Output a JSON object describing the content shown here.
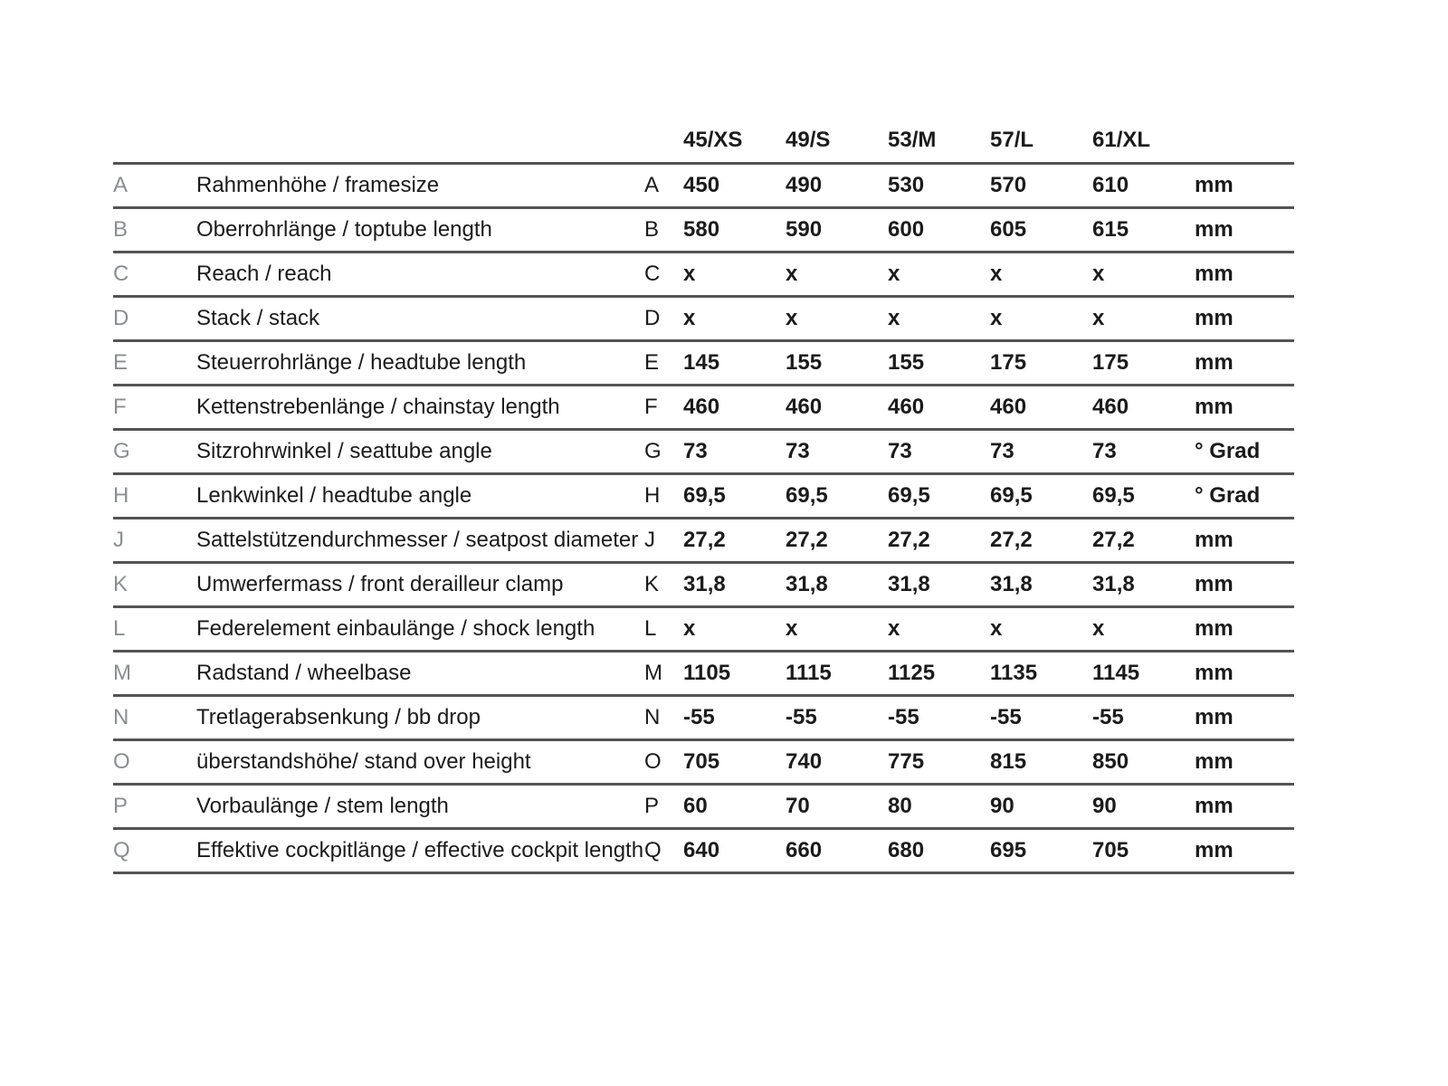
{
  "chart_data": {
    "type": "table",
    "title": "",
    "column_headers": [
      "45/XS",
      "49/S",
      "53/M",
      "57/L",
      "61/XL"
    ],
    "rows": [
      {
        "letter": "A",
        "label": "Rahmenhöhe / framesize",
        "values": [
          "450",
          "490",
          "530",
          "570",
          "610"
        ],
        "unit": "mm"
      },
      {
        "letter": "B",
        "label": "Oberrohrlänge / toptube length",
        "values": [
          "580",
          "590",
          "600",
          "605",
          "615"
        ],
        "unit": "mm"
      },
      {
        "letter": "C",
        "label": "Reach / reach",
        "values": [
          "x",
          "x",
          "x",
          "x",
          "x"
        ],
        "unit": "mm"
      },
      {
        "letter": "D",
        "label": "Stack / stack",
        "values": [
          "x",
          "x",
          "x",
          "x",
          "x"
        ],
        "unit": "mm"
      },
      {
        "letter": "E",
        "label": "Steuerrohrlänge / headtube length",
        "values": [
          "145",
          "155",
          "155",
          "175",
          "175"
        ],
        "unit": "mm"
      },
      {
        "letter": "F",
        "label": "Kettenstrebenlänge / chainstay length",
        "values": [
          "460",
          "460",
          "460",
          "460",
          "460"
        ],
        "unit": "mm"
      },
      {
        "letter": "G",
        "label": "Sitzrohrwinkel / seattube angle",
        "values": [
          "73",
          "73",
          "73",
          "73",
          "73"
        ],
        "unit": "° Grad"
      },
      {
        "letter": "H",
        "label": "Lenkwinkel / headtube angle",
        "values": [
          "69,5",
          "69,5",
          "69,5",
          "69,5",
          "69,5"
        ],
        "unit": "° Grad"
      },
      {
        "letter": "J",
        "label": "Sattelstützendurchmesser / seatpost diameter",
        "values": [
          "27,2",
          "27,2",
          "27,2",
          "27,2",
          "27,2"
        ],
        "unit": "mm"
      },
      {
        "letter": "K",
        "label": "Umwerfermass / front derailleur clamp",
        "values": [
          "31,8",
          "31,8",
          "31,8",
          "31,8",
          "31,8"
        ],
        "unit": "mm"
      },
      {
        "letter": "L",
        "label": "Federelement einbaulänge / shock length",
        "values": [
          "x",
          "x",
          "x",
          "x",
          "x"
        ],
        "unit": "mm"
      },
      {
        "letter": "M",
        "label": "Radstand / wheelbase",
        "values": [
          "1105",
          "1115",
          "1125",
          "1135",
          "1145"
        ],
        "unit": "mm"
      },
      {
        "letter": "N",
        "label": "Tretlagerabsenkung / bb drop",
        "values": [
          "-55",
          "-55",
          "-55",
          "-55",
          "-55"
        ],
        "unit": "mm"
      },
      {
        "letter": "O",
        "label": "überstandshöhe/ stand over height",
        "values": [
          "705",
          "740",
          "775",
          "815",
          "850"
        ],
        "unit": "mm"
      },
      {
        "letter": "P",
        "label": "Vorbaulänge / stem length",
        "values": [
          "60",
          "70",
          "80",
          "90",
          "90"
        ],
        "unit": "mm"
      },
      {
        "letter": "Q",
        "label": "Effektive cockpitlänge / effective cockpit length",
        "values": [
          "640",
          "660",
          "680",
          "695",
          "705"
        ],
        "unit": "mm"
      }
    ],
    "layout": {
      "grid": "horizontal-rules-only",
      "rule_color": "#545454",
      "text_color": "#1b1b1b",
      "muted_letter_color": "#8b8e90",
      "background": "#ffffff",
      "legend": "none"
    }
  }
}
